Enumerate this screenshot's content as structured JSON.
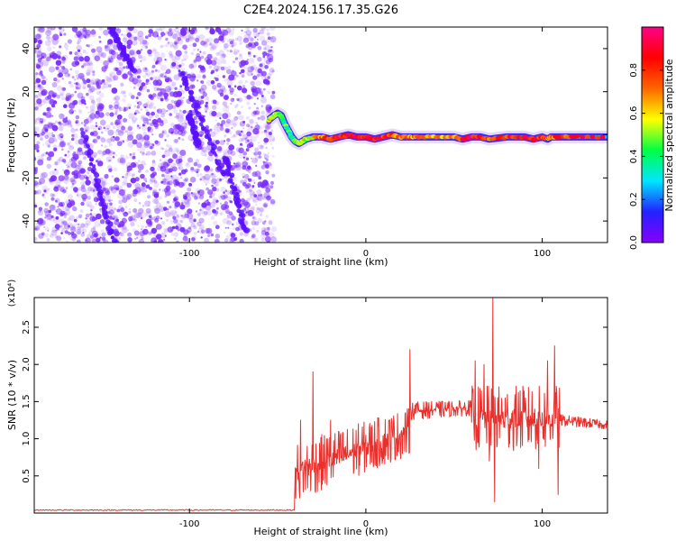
{
  "title": "C2E4.2024.156.17.35.G26",
  "chart_data": [
    {
      "type": "heatmap",
      "xlabel": "Height of straight line (km)",
      "ylabel": "Frequency (Hz)",
      "xlim": [
        -188,
        137
      ],
      "ylim": [
        -50,
        50
      ],
      "xticks": [
        -100,
        0,
        100
      ],
      "yticks": [
        -40,
        -20,
        0,
        20,
        40
      ],
      "colorbar": {
        "label": "Normalized spectral amplitude",
        "range": [
          0,
          1
        ],
        "ticks": [
          0.0,
          0.2,
          0.4,
          0.6,
          0.8
        ],
        "colormap": [
          "#8800ff",
          "#2222ff",
          "#00e6ff",
          "#00ff44",
          "#ffff00",
          "#ff6600",
          "#ff0000",
          "#ff0088"
        ]
      },
      "noise_region": {
        "x": [
          -188,
          -52
        ],
        "color": "#7a2bff"
      },
      "ridge": {
        "x": [
          -55,
          -52,
          -50,
          -48,
          -46,
          -44,
          -42,
          -40,
          -38,
          -36,
          -34,
          -30,
          -25,
          -20,
          -15,
          -10,
          -5,
          0,
          5,
          10,
          15,
          20,
          25,
          30,
          40,
          50,
          55,
          60,
          65,
          70,
          80,
          90,
          95,
          100,
          103,
          105,
          110,
          120,
          137
        ],
        "y": [
          7,
          9,
          10,
          9,
          5,
          2,
          -1,
          -3,
          -4,
          -3,
          -2,
          -1,
          -1,
          -2,
          -1,
          0,
          -1,
          -1,
          -2,
          -1,
          0,
          -1,
          -1,
          -1,
          -1,
          -1,
          -2,
          -1,
          -1,
          -2,
          -1,
          -1,
          -2,
          -1,
          -2,
          -1,
          -1,
          -1,
          -1
        ],
        "amplitude": [
          0.5,
          0.55,
          0.5,
          0.45,
          0.42,
          0.4,
          0.38,
          0.4,
          0.45,
          0.5,
          0.55,
          0.6,
          0.7,
          0.8,
          0.85,
          0.9,
          0.85,
          0.88,
          0.9,
          0.82,
          0.75,
          0.72,
          0.7,
          0.68,
          0.65,
          0.7,
          0.85,
          0.9,
          0.8,
          0.75,
          0.82,
          0.9,
          0.85,
          0.8,
          0.7,
          0.75,
          0.8,
          0.8,
          0.8
        ]
      }
    },
    {
      "type": "line",
      "xlabel": "Height of straight line (km)",
      "ylabel": "SNR (10 * v/v)",
      "yscale_label": "(x10⁴)",
      "xlim": [
        -188,
        137
      ],
      "ylim": [
        0,
        2.9
      ],
      "xticks": [
        -100,
        0,
        100
      ],
      "yticks": [
        0.5,
        1.0,
        1.5,
        2.0,
        2.5
      ],
      "color": "#e8302c",
      "baseline": {
        "x": [
          -188,
          -40
        ],
        "y": 0.04
      },
      "segments": [
        {
          "x": [
            -40,
            25
          ],
          "lo": [
            0.3,
            0.9
          ],
          "hi": [
            0.8,
            1.3
          ]
        },
        {
          "x": [
            25,
            60
          ],
          "lo": [
            1.3,
            1.35
          ],
          "hi": [
            1.45,
            1.48
          ]
        },
        {
          "x": [
            60,
            110
          ],
          "lo": [
            1.0,
            1.0
          ],
          "hi": [
            1.55,
            1.55
          ]
        },
        {
          "x": [
            110,
            137
          ],
          "lo": [
            1.2,
            1.15
          ],
          "hi": [
            1.3,
            1.22
          ]
        }
      ],
      "spikes": [
        {
          "x": -30,
          "y": 1.9
        },
        {
          "x": -37,
          "y": 1.25
        },
        {
          "x": -20,
          "y": 1.25
        },
        {
          "x": 0,
          "y": 1.05
        },
        {
          "x": 25,
          "y": 2.2
        },
        {
          "x": 62,
          "y": 2.05
        },
        {
          "x": 67,
          "y": 2.0
        },
        {
          "x": 72,
          "y": 2.9
        },
        {
          "x": 73,
          "y": 0.15
        },
        {
          "x": 70,
          "y": 0.7
        },
        {
          "x": 98,
          "y": 0.6
        },
        {
          "x": 103,
          "y": 2.05
        },
        {
          "x": 107,
          "y": 2.25
        },
        {
          "x": 109,
          "y": 0.25
        }
      ]
    }
  ]
}
